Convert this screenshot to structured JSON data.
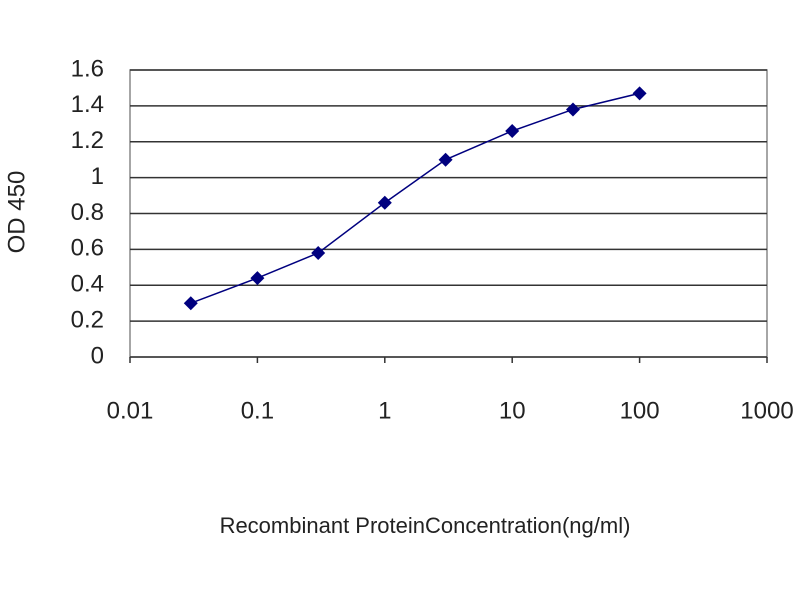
{
  "chart_data": {
    "type": "line",
    "y_label": "OD 450",
    "x_label": "Recombinant ProteinConcentration(ng/ml)",
    "x": [
      0.03,
      0.1,
      0.3,
      1,
      3,
      10,
      30,
      100
    ],
    "values": [
      0.3,
      0.44,
      0.58,
      0.86,
      1.1,
      1.26,
      1.38,
      1.47
    ],
    "color": "#00007f",
    "log_x": true,
    "xlim": [
      0.01,
      1000
    ],
    "xticks": [
      0.01,
      0.1,
      1,
      10,
      100,
      1000
    ],
    "ylim": [
      0,
      1.6
    ],
    "yticks": [
      0,
      0.2,
      0.4,
      0.6,
      0.8,
      1,
      1.2,
      1.4,
      1.6
    ],
    "grid": true
  }
}
